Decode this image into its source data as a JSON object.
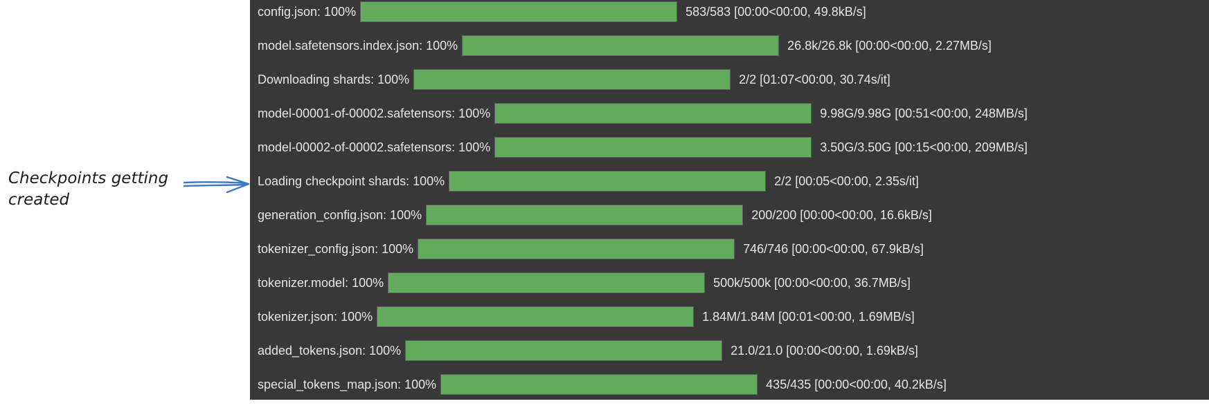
{
  "progress_rows": [
    {
      "label": "config.json: 100%",
      "progress": 1.0,
      "stats": "583/583 [00:00<00:00, 49.8kB/s]"
    },
    {
      "label": "model.safetensors.index.json: 100%",
      "progress": 1.0,
      "stats": "26.8k/26.8k [00:00<00:00, 2.27MB/s]"
    },
    {
      "label": "Downloading shards: 100%",
      "progress": 1.0,
      "stats": "2/2 [01:07<00:00, 30.74s/it]"
    },
    {
      "label": "model-00001-of-00002.safetensors: 100%",
      "progress": 1.0,
      "stats": "9.98G/9.98G [00:51<00:00, 248MB/s]"
    },
    {
      "label": "model-00002-of-00002.safetensors: 100%",
      "progress": 1.0,
      "stats": "3.50G/3.50G [00:15<00:00, 209MB/s]"
    },
    {
      "label": "Loading checkpoint shards: 100%",
      "progress": 1.0,
      "stats": "2/2 [00:05<00:00,  2.35s/it]"
    },
    {
      "label": "generation_config.json: 100%",
      "progress": 1.0,
      "stats": "200/200 [00:00<00:00, 16.6kB/s]"
    },
    {
      "label": "tokenizer_config.json: 100%",
      "progress": 1.0,
      "stats": "746/746 [00:00<00:00, 67.9kB/s]"
    },
    {
      "label": "tokenizer.model: 100%",
      "progress": 1.0,
      "stats": "500k/500k [00:00<00:00, 36.7MB/s]"
    },
    {
      "label": "tokenizer.json: 100%",
      "progress": 1.0,
      "stats": "1.84M/1.84M [00:01<00:00, 1.69MB/s]"
    },
    {
      "label": "added_tokens.json: 100%",
      "progress": 1.0,
      "stats": "21.0/21.0 [00:00<00:00, 1.69kB/s]"
    },
    {
      "label": "special_tokens_map.json: 100%",
      "progress": 1.0,
      "stats": "435/435 [00:00<00:00, 40.2kB/s]"
    }
  ],
  "annotation": {
    "line1": "Checkpoints getting",
    "line2": "created"
  },
  "colors": {
    "terminal_background": "#383838",
    "bar_fill": "#63ab5c",
    "text": "#e6e6e6",
    "arrow": "#3b78c4"
  },
  "icons": {
    "annotation_arrow": "double-line-right-arrow"
  }
}
